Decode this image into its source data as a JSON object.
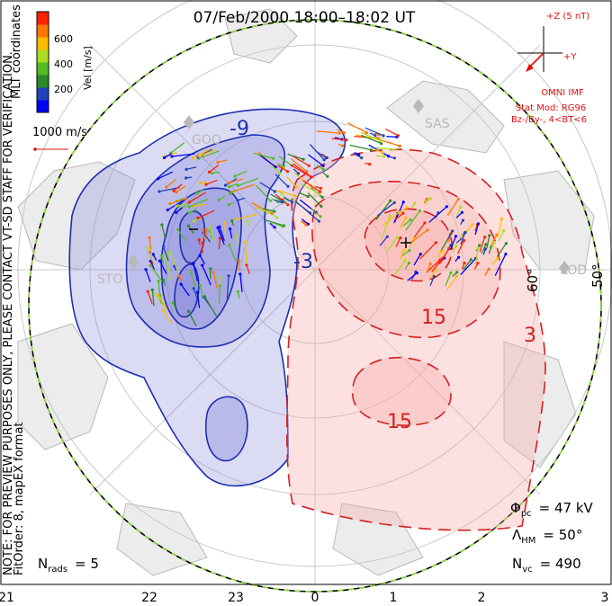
{
  "title": "07/Feb/2000 18:00–18:02 UT",
  "colorbar": {
    "ticks": [
      "600",
      "400",
      "200"
    ],
    "unit": "Vel [m/s]",
    "colors": [
      "#0000ff",
      "#2244bb",
      "#2a8a2a",
      "#55bb22",
      "#aadd22",
      "#ffbb00",
      "#ff7700",
      "#ff2200"
    ]
  },
  "coordinates_label": "MLT coordinates",
  "velocity_scale_label": "1000 m/s",
  "imf": {
    "scale_label": "+Z (5 nT)",
    "y_label": "+Y",
    "source": "OMNI IMF",
    "stat_mod": "Stat Mod: RG96",
    "condition": "Bz-/By-, 4<BT<6"
  },
  "preview_note": "NOTE: FOR PREVIEW PURPOSES ONLY, PLEASE CONTACT VT-SD STAFF FOR VERIFICATION.",
  "fit_order": "FitOrder: 8, mapEX format",
  "stations": [
    "GOO",
    "SAS",
    "STO",
    "KOD"
  ],
  "latitude_labels": [
    "60°",
    "50°"
  ],
  "contour_labels": {
    "negative": [
      "-9",
      "-3"
    ],
    "positive": [
      "15",
      "15",
      "3"
    ]
  },
  "stats": {
    "phi_pc_symbol": "Φ",
    "phi_pc_sub": "pc",
    "phi_pc_value": "= 47 kV",
    "lambda_hm_symbol": "Λ",
    "lambda_hm_sub": "HM",
    "lambda_hm_value": "= 50°",
    "n_vc_symbol": "N",
    "n_vc_sub": "vc",
    "n_vc_value": "= 490",
    "n_rads_symbol": "N",
    "n_rads_sub": "rads",
    "n_rads_value": "= 5"
  },
  "mlt_ticks": [
    "21",
    "22",
    "23",
    "0",
    "1",
    "2",
    "3"
  ],
  "colors": {
    "negative_line": "#1f2fb0",
    "negative_fill": "#7d7fd8",
    "positive_line": "#d42020",
    "positive_fill": "#f5a8a6",
    "imf_red": "#e01010"
  }
}
